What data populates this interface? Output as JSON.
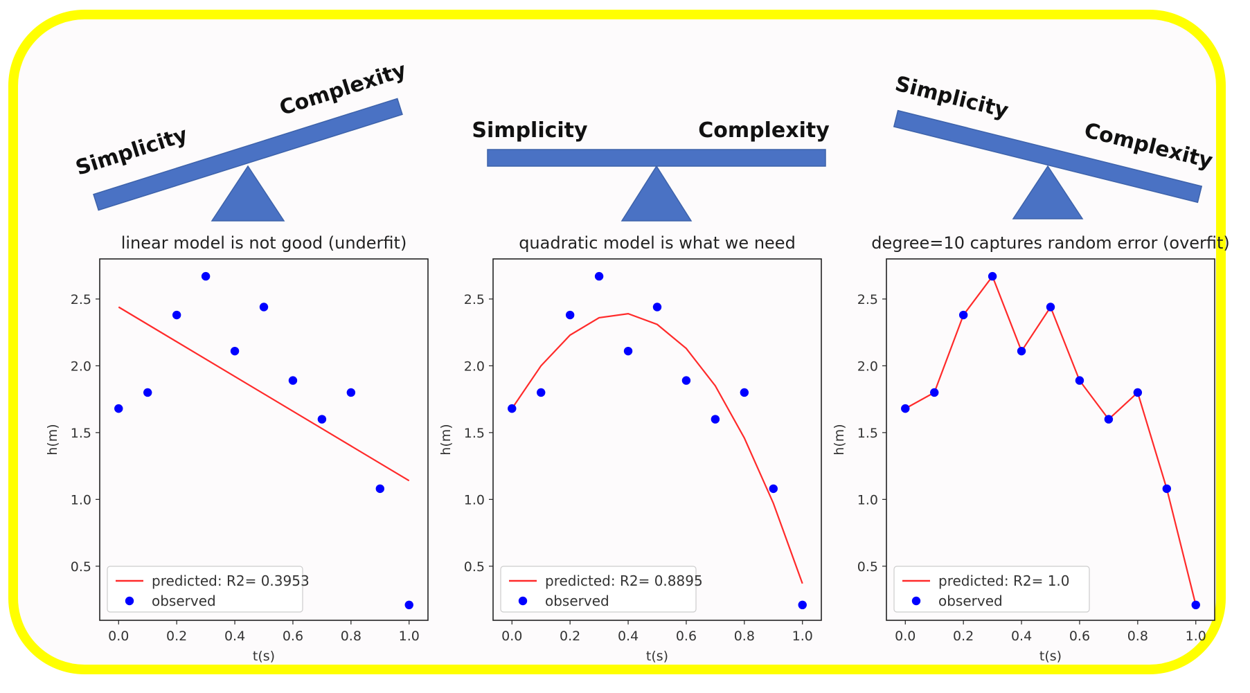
{
  "colors": {
    "frame": "#ffff00",
    "beam": "#4a72c4",
    "observed": "#0000ff",
    "predicted": "#ff2a2a"
  },
  "seesaws": [
    {
      "tilt": "right-up",
      "left_label": "Simplicity",
      "right_label": "Complexity"
    },
    {
      "tilt": "level",
      "left_label": "Simplicity",
      "right_label": "Complexity"
    },
    {
      "tilt": "left-up",
      "left_label": "Simplicity",
      "right_label": "Complexity"
    }
  ],
  "chart_data": [
    {
      "type": "scatter",
      "title": "linear model is not good (underfit)",
      "xlabel": "t(s)",
      "ylabel": "h(m)",
      "xlim": [
        -0.065,
        1.065
      ],
      "ylim": [
        0.095,
        2.8
      ],
      "xticks": [
        0.0,
        0.2,
        0.4,
        0.6,
        0.8,
        1.0
      ],
      "xtick_labels": [
        "0.0",
        "0.2",
        "0.4",
        "0.6",
        "0.8",
        "1.0"
      ],
      "yticks": [
        0.5,
        1.0,
        1.5,
        2.0,
        2.5
      ],
      "ytick_labels": [
        "0.5",
        "1.0",
        "1.5",
        "2.0",
        "2.5"
      ],
      "legend_position": "lower-left",
      "series": [
        {
          "name": "predicted: R2= 0.3953",
          "kind": "line",
          "x": [
            0.0,
            1.0
          ],
          "y": [
            2.44,
            1.14
          ]
        },
        {
          "name": "observed",
          "kind": "scatter",
          "x": [
            0.0,
            0.1,
            0.2,
            0.3,
            0.4,
            0.5,
            0.6,
            0.7,
            0.8,
            0.9,
            1.0
          ],
          "y": [
            1.68,
            1.8,
            2.38,
            2.67,
            2.11,
            2.44,
            1.89,
            1.6,
            1.8,
            1.08,
            0.21
          ]
        }
      ]
    },
    {
      "type": "scatter",
      "title": "quadratic model is what we need",
      "xlabel": "t(s)",
      "ylabel": "h(m)",
      "xlim": [
        -0.065,
        1.065
      ],
      "ylim": [
        0.095,
        2.8
      ],
      "xticks": [
        0.0,
        0.2,
        0.4,
        0.6,
        0.8,
        1.0
      ],
      "xtick_labels": [
        "0.0",
        "0.2",
        "0.4",
        "0.6",
        "0.8",
        "1.0"
      ],
      "yticks": [
        0.5,
        1.0,
        1.5,
        2.0,
        2.5
      ],
      "ytick_labels": [
        "0.5",
        "1.0",
        "1.5",
        "2.0",
        "2.5"
      ],
      "legend_position": "lower-left",
      "series": [
        {
          "name": "predicted: R2= 0.8895",
          "kind": "line",
          "x": [
            0.0,
            0.1,
            0.2,
            0.3,
            0.4,
            0.5,
            0.6,
            0.7,
            0.8,
            0.9,
            1.0
          ],
          "y": [
            1.68,
            2.0,
            2.23,
            2.36,
            2.39,
            2.31,
            2.13,
            1.85,
            1.46,
            0.97,
            0.37
          ]
        },
        {
          "name": "observed",
          "kind": "scatter",
          "x": [
            0.0,
            0.1,
            0.2,
            0.3,
            0.4,
            0.5,
            0.6,
            0.7,
            0.8,
            0.9,
            1.0
          ],
          "y": [
            1.68,
            1.8,
            2.38,
            2.67,
            2.11,
            2.44,
            1.89,
            1.6,
            1.8,
            1.08,
            0.21
          ]
        }
      ]
    },
    {
      "type": "scatter",
      "title": "degree=10 captures random error (overfit)",
      "xlabel": "t(s)",
      "ylabel": "h(m)",
      "xlim": [
        -0.065,
        1.065
      ],
      "ylim": [
        0.095,
        2.8
      ],
      "xticks": [
        0.0,
        0.2,
        0.4,
        0.6,
        0.8,
        1.0
      ],
      "xtick_labels": [
        "0.0",
        "0.2",
        "0.4",
        "0.6",
        "0.8",
        "1.0"
      ],
      "yticks": [
        0.5,
        1.0,
        1.5,
        2.0,
        2.5
      ],
      "ytick_labels": [
        "0.5",
        "1.0",
        "1.5",
        "2.0",
        "2.5"
      ],
      "legend_position": "lower-left",
      "series": [
        {
          "name": "predicted: R2= 1.0",
          "kind": "line",
          "x": [
            0.0,
            0.1,
            0.2,
            0.3,
            0.4,
            0.5,
            0.6,
            0.7,
            0.8,
            0.9,
            1.0
          ],
          "y": [
            1.68,
            1.8,
            2.38,
            2.67,
            2.11,
            2.44,
            1.89,
            1.6,
            1.8,
            1.08,
            0.21
          ]
        },
        {
          "name": "observed",
          "kind": "scatter",
          "x": [
            0.0,
            0.1,
            0.2,
            0.3,
            0.4,
            0.5,
            0.6,
            0.7,
            0.8,
            0.9,
            1.0
          ],
          "y": [
            1.68,
            1.8,
            2.38,
            2.67,
            2.11,
            2.44,
            1.89,
            1.6,
            1.8,
            1.08,
            0.21
          ]
        }
      ]
    }
  ]
}
